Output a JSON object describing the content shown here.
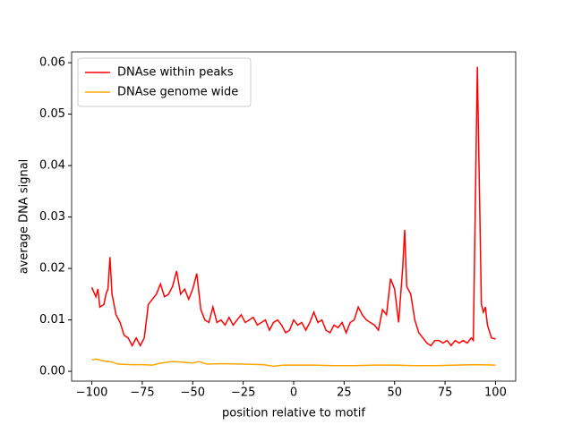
{
  "chart_data": {
    "type": "line",
    "xlabel": "position relative to motif",
    "ylabel": "average DNA signal",
    "xlim": [
      -110,
      110
    ],
    "ylim": [
      -0.0019,
      0.0621
    ],
    "xticks": [
      {
        "value": -100,
        "label": "−100"
      },
      {
        "value": -75,
        "label": "−75"
      },
      {
        "value": -50,
        "label": "−50"
      },
      {
        "value": -25,
        "label": "−25"
      },
      0,
      25,
      50,
      75,
      100
    ],
    "yticks": [
      {
        "value": 0,
        "label": "0.00"
      },
      {
        "value": 0.01,
        "label": "0.01"
      },
      {
        "value": 0.02,
        "label": "0.02"
      },
      {
        "value": 0.03,
        "label": "0.03"
      },
      {
        "value": 0.04,
        "label": "0.04"
      },
      {
        "value": 0.05,
        "label": "0.05"
      },
      {
        "value": 0.06,
        "label": "0.06"
      }
    ],
    "legend": "upper left",
    "series": [
      {
        "name": "DNAse within peaks",
        "color": "#ff0000",
        "x": [
          -100,
          -98,
          -97,
          -96,
          -94,
          -93,
          -92,
          -91,
          -90,
          -88,
          -86,
          -84,
          -82,
          -80,
          -78,
          -76,
          -74,
          -72,
          -70,
          -68,
          -66,
          -64,
          -62,
          -60,
          -58,
          -56,
          -54,
          -52,
          -50,
          -48,
          -46,
          -44,
          -42,
          -40,
          -38,
          -36,
          -34,
          -32,
          -30,
          -28,
          -26,
          -24,
          -22,
          -20,
          -18,
          -16,
          -14,
          -12,
          -10,
          -8,
          -6,
          -4,
          -2,
          0,
          2,
          4,
          6,
          8,
          10,
          12,
          14,
          16,
          18,
          20,
          22,
          24,
          26,
          28,
          30,
          32,
          34,
          36,
          38,
          40,
          42,
          44,
          46,
          48,
          50,
          52,
          54,
          55,
          56,
          58,
          60,
          62,
          64,
          66,
          68,
          70,
          72,
          74,
          76,
          78,
          80,
          82,
          84,
          86,
          88,
          89,
          91,
          93,
          94,
          95,
          96,
          98,
          100
        ],
        "values": [
          0.0163,
          0.0145,
          0.016,
          0.0125,
          0.013,
          0.015,
          0.016,
          0.0222,
          0.015,
          0.011,
          0.0095,
          0.007,
          0.0065,
          0.005,
          0.0065,
          0.005,
          0.0065,
          0.013,
          0.014,
          0.015,
          0.017,
          0.0145,
          0.015,
          0.0165,
          0.0195,
          0.015,
          0.016,
          0.014,
          0.016,
          0.019,
          0.012,
          0.01,
          0.0095,
          0.0125,
          0.0095,
          0.01,
          0.009,
          0.0105,
          0.009,
          0.01,
          0.011,
          0.0095,
          0.01,
          0.0105,
          0.009,
          0.0095,
          0.01,
          0.008,
          0.0095,
          0.01,
          0.009,
          0.0075,
          0.008,
          0.01,
          0.009,
          0.0095,
          0.008,
          0.0095,
          0.0115,
          0.0095,
          0.01,
          0.008,
          0.0075,
          0.009,
          0.0085,
          0.0095,
          0.0075,
          0.0095,
          0.01,
          0.0125,
          0.011,
          0.01,
          0.0095,
          0.009,
          0.008,
          0.012,
          0.011,
          0.018,
          0.016,
          0.0095,
          0.02,
          0.0275,
          0.0165,
          0.015,
          0.01,
          0.0075,
          0.0065,
          0.0055,
          0.005,
          0.006,
          0.006,
          0.0055,
          0.006,
          0.005,
          0.006,
          0.0055,
          0.006,
          0.0055,
          0.0065,
          0.006,
          0.0592,
          0.013,
          0.0115,
          0.0125,
          0.009,
          0.0065,
          0.0063
        ]
      },
      {
        "name": "DNAse genome wide",
        "color": "#ffa500",
        "x": [
          -100,
          -98,
          -95,
          -90,
          -87,
          -80,
          -75,
          -70,
          -66,
          -60,
          -55,
          -50,
          -47,
          -43,
          -35,
          -25,
          -15,
          -10,
          -5,
          0,
          10,
          20,
          30,
          40,
          50,
          60,
          70,
          80,
          90,
          100
        ],
        "values": [
          0.0022,
          0.0024,
          0.0021,
          0.0018,
          0.0014,
          0.0013,
          0.0013,
          0.0012,
          0.0016,
          0.0019,
          0.0018,
          0.0016,
          0.0019,
          0.0014,
          0.0015,
          0.0014,
          0.0013,
          0.001,
          0.0012,
          0.0012,
          0.0012,
          0.0011,
          0.0011,
          0.0012,
          0.0012,
          0.0011,
          0.0011,
          0.0012,
          0.0013,
          0.0012
        ]
      }
    ]
  }
}
